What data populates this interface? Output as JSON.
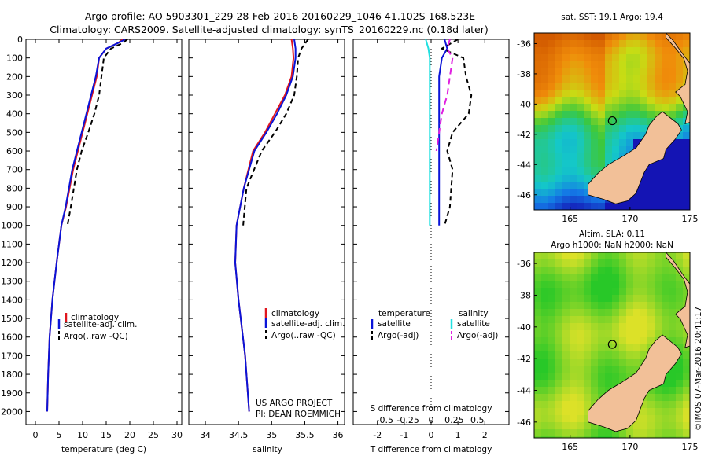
{
  "header": {
    "title_line1": "Argo profile: AO 5903301_229 28-Feb-2016 20160229_1046 41.102S 168.523E",
    "title_line2": "Climatology: CARS2009. Satellite-adjusted climatology: synTS_20160229.nc (0.18d later)"
  },
  "colors": {
    "climatology": "#e0161e",
    "satellite": "#0a14d8",
    "argo": "#000000",
    "salinity_sat": "#22e0e0",
    "salinity_argo": "#e020e0",
    "land": "#f2c098"
  },
  "chart_data": [
    {
      "id": "temperature",
      "type": "line",
      "xlabel": "temperature (deg C)",
      "xlim": [
        -2,
        31
      ],
      "xticks": [
        "0",
        "5",
        "10",
        "15",
        "20",
        "25",
        "30"
      ],
      "xtick_values": [
        0,
        5,
        10,
        15,
        20,
        25,
        30
      ],
      "ylim": [
        2070,
        0
      ],
      "yticks": [
        "0",
        "100",
        "200",
        "300",
        "400",
        "500",
        "600",
        "700",
        "800",
        "900",
        "1000",
        "1100",
        "1200",
        "1300",
        "1400",
        "1500",
        "1600",
        "1700",
        "1800",
        "1900",
        "2000"
      ],
      "ytick_values": [
        0,
        100,
        200,
        300,
        400,
        500,
        600,
        700,
        800,
        900,
        1000,
        1100,
        1200,
        1300,
        1400,
        1500,
        1600,
        1700,
        1800,
        1900,
        2000
      ],
      "legend": [
        "climatology",
        "satellite-adj. clim.",
        "Argo(..raw -QC)"
      ],
      "series": [
        {
          "name": "climatology",
          "color_key": "climatology",
          "dash": "",
          "x": [
            18.5,
            17.5,
            15,
            13.5,
            13,
            12,
            11,
            10,
            9,
            8,
            6.5,
            5.5,
            4.5,
            3.6,
            3.0,
            2.7,
            2.5
          ],
          "y": [
            0,
            20,
            50,
            100,
            200,
            300,
            400,
            500,
            600,
            700,
            900,
            1000,
            1200,
            1400,
            1600,
            1800,
            2000
          ]
        },
        {
          "name": "satellite-adj. clim.",
          "color_key": "satellite",
          "dash": "",
          "x": [
            19,
            17.5,
            15,
            13.5,
            12.8,
            11.8,
            10.8,
            9.8,
            8.8,
            7.8,
            6.4,
            5.5,
            4.5,
            3.6,
            3.0,
            2.7,
            2.5
          ],
          "y": [
            0,
            20,
            50,
            100,
            200,
            300,
            400,
            500,
            600,
            700,
            900,
            1000,
            1200,
            1400,
            1600,
            1800,
            2000
          ]
        },
        {
          "name": "Argo(..raw -QC)",
          "color_key": "argo",
          "dash": "6,4",
          "x": [
            19.5,
            18.5,
            16,
            14.5,
            14,
            13.5,
            12.5,
            11.2,
            9.8,
            8.8,
            7.5,
            6.8
          ],
          "y": [
            0,
            20,
            50,
            100,
            200,
            300,
            400,
            500,
            600,
            700,
            900,
            1000
          ]
        }
      ]
    },
    {
      "id": "salinity",
      "type": "line",
      "xlabel": "salinity",
      "xlim": [
        33.75,
        36.1
      ],
      "xticks": [
        "34",
        "34.5",
        "35",
        "35.5",
        "36"
      ],
      "xtick_values": [
        34,
        34.5,
        35,
        35.5,
        36
      ],
      "ylim": [
        2070,
        0
      ],
      "legend": [
        "climatology",
        "satellite-adj. clim.",
        "Argo(..raw -QC)"
      ],
      "annotation": [
        "US ARGO PROJECT",
        "PI: DEAN ROEMMICH"
      ],
      "series": [
        {
          "name": "climatology",
          "color_key": "climatology",
          "dash": "",
          "x": [
            35.3,
            35.32,
            35.33,
            35.3,
            35.2,
            35.05,
            34.9,
            34.72,
            34.58,
            34.47,
            34.45,
            34.5,
            34.6,
            34.66
          ],
          "y": [
            0,
            50,
            100,
            200,
            300,
            400,
            500,
            600,
            800,
            1000,
            1200,
            1400,
            1700,
            2000
          ]
        },
        {
          "name": "satellite-adj. clim.",
          "color_key": "satellite",
          "dash": "",
          "x": [
            35.34,
            35.36,
            35.36,
            35.32,
            35.22,
            35.08,
            34.92,
            34.74,
            34.58,
            34.47,
            34.45,
            34.5,
            34.6,
            34.66
          ],
          "y": [
            0,
            50,
            100,
            200,
            300,
            400,
            500,
            600,
            800,
            1000,
            1200,
            1400,
            1700,
            2000
          ]
        },
        {
          "name": "Argo(..raw -QC)",
          "color_key": "argo",
          "dash": "6,4",
          "x": [
            35.55,
            35.45,
            35.4,
            35.38,
            35.34,
            35.22,
            35.05,
            34.85,
            34.62,
            34.57
          ],
          "y": [
            0,
            50,
            100,
            200,
            300,
            400,
            500,
            600,
            800,
            1000
          ]
        }
      ]
    },
    {
      "id": "difference",
      "type": "line",
      "xlabel": "T difference from climatology",
      "xlabel_top": "S difference from climatology",
      "xlim": [
        -2.9,
        2.9
      ],
      "xticks": [
        "-2",
        "-1",
        "0",
        "1",
        "2"
      ],
      "xtick_values": [
        -2,
        -1,
        0,
        1,
        2
      ],
      "sticks": [
        "-0.5",
        "-0.25",
        "0",
        "0.25",
        "0.5"
      ],
      "stick_values": [
        -1.72,
        -0.86,
        0,
        0.86,
        1.72
      ],
      "ylim": [
        2070,
        0
      ],
      "legend_temperature_title": "temperature",
      "legend_salinity_title": "salinity",
      "legend_temperature": [
        "satellite",
        "Argo(-adj)"
      ],
      "legend_salinity": [
        "satellite",
        "Argo(-adj)"
      ],
      "series": [
        {
          "name": "T satellite",
          "color_key": "satellite",
          "dash": "",
          "x": [
            0.5,
            0.6,
            0.4,
            0.3,
            0.3,
            0.3,
            0.3,
            0.3,
            0.3,
            0.3,
            0.3
          ],
          "y": [
            0,
            50,
            100,
            200,
            300,
            400,
            500,
            600,
            700,
            900,
            1000
          ]
        },
        {
          "name": "T Argo(-adj)",
          "color_key": "argo",
          "dash": "6,4",
          "x": [
            1.0,
            0.4,
            1.2,
            1.3,
            1.5,
            1.4,
            0.8,
            0.6,
            0.8,
            0.7,
            0.5
          ],
          "y": [
            0,
            50,
            100,
            200,
            300,
            400,
            500,
            600,
            700,
            900,
            1000
          ]
        },
        {
          "name": "S satellite",
          "color_key": "salinity_sat",
          "dash": "",
          "x": [
            -0.2,
            -0.1,
            -0.05,
            -0.05,
            -0.05,
            -0.05,
            -0.05,
            -0.05,
            -0.05,
            -0.05,
            -0.05
          ],
          "y": [
            0,
            50,
            100,
            200,
            300,
            400,
            500,
            600,
            700,
            900,
            1000
          ]
        },
        {
          "name": "S Argo(-adj)",
          "color_key": "salinity_argo",
          "dash": "8,5",
          "x": [
            0.7,
            0.6,
            0.8,
            0.7,
            0.6,
            0.4,
            0.3,
            0.2
          ],
          "y": [
            0,
            50,
            100,
            200,
            300,
            400,
            500,
            600
          ]
        }
      ]
    },
    {
      "id": "map_sst",
      "type": "heatmap",
      "title": "sat. SST: 19.1  Argo: 19.4",
      "xlim": [
        162,
        175
      ],
      "ylim": [
        -47,
        -35.3
      ],
      "xticks": [
        "165",
        "170",
        "175"
      ],
      "xtick_values": [
        165,
        170,
        175
      ],
      "yticks": [
        "-36",
        "-38",
        "-40",
        "-42",
        "-44",
        "-46"
      ],
      "ytick_values": [
        -36,
        -38,
        -40,
        -42,
        -44,
        -46
      ],
      "marker": {
        "lon": 168.523,
        "lat": -41.102
      }
    },
    {
      "id": "map_sla",
      "type": "heatmap",
      "title_line1": "Altim. SLA: 0.11",
      "title_line2": "Argo h1000: NaN h2000: NaN",
      "xlim": [
        162,
        175
      ],
      "ylim": [
        -47,
        -35.3
      ],
      "xticks": [
        "165",
        "170",
        "175"
      ],
      "xtick_values": [
        165,
        170,
        175
      ],
      "yticks": [
        "-36",
        "-38",
        "-40",
        "-42",
        "-44",
        "-46"
      ],
      "ytick_values": [
        -36,
        -38,
        -40,
        -42,
        -44,
        -46
      ],
      "marker": {
        "lon": 168.523,
        "lat": -41.102
      }
    }
  ],
  "credit": "©IMOS 07-Mar-2016 20:41:17"
}
